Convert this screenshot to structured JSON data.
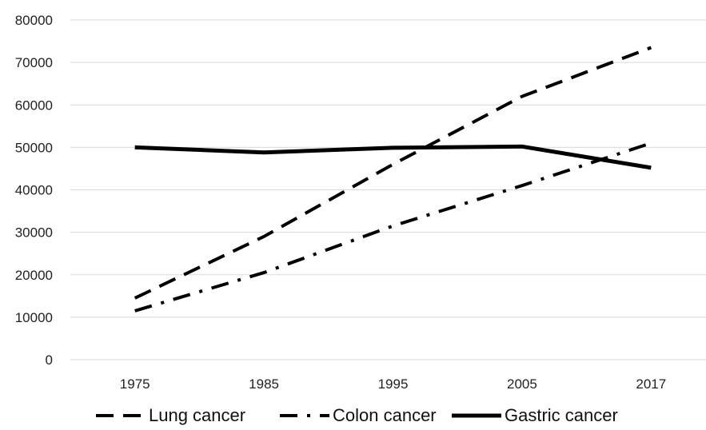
{
  "chart_data": {
    "type": "line",
    "title": "",
    "xlabel": "",
    "ylabel": "",
    "categories": [
      "1975",
      "1985",
      "1995",
      "2005",
      "2017"
    ],
    "ylim": [
      0,
      80000
    ],
    "yticks": [
      "0",
      "10000",
      "20000",
      "30000",
      "40000",
      "50000",
      "60000",
      "70000",
      "80000"
    ],
    "grid": true,
    "legend_position": "bottom",
    "series": [
      {
        "name": "Lung cancer",
        "values": [
          14500,
          29000,
          46000,
          62000,
          73500
        ],
        "dash": "dashed",
        "color": "#000000"
      },
      {
        "name": "Colon cancer",
        "values": [
          11500,
          20500,
          31500,
          41000,
          51000
        ],
        "dash": "dash-dot",
        "color": "#000000"
      },
      {
        "name": "Gastric cancer",
        "values": [
          50000,
          48800,
          49900,
          50200,
          45200
        ],
        "dash": "solid",
        "color": "#000000"
      }
    ]
  }
}
